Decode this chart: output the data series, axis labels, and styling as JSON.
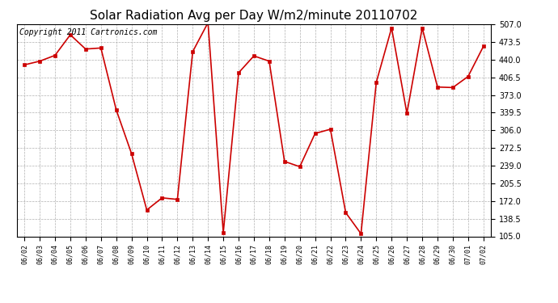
{
  "title": "Solar Radiation Avg per Day W/m2/minute 20110702",
  "copyright": "Copyright 2011 Cartronics.com",
  "dates": [
    "06/02",
    "06/03",
    "06/04",
    "06/05",
    "06/06",
    "06/07",
    "06/08",
    "06/09",
    "06/10",
    "06/11",
    "06/12",
    "06/13",
    "06/14",
    "06/15",
    "06/16",
    "06/17",
    "06/18",
    "06/19",
    "06/20",
    "06/21",
    "06/22",
    "06/23",
    "06/24",
    "06/25",
    "06/26",
    "06/27",
    "06/28",
    "06/29",
    "06/30",
    "07/01",
    "07/02"
  ],
  "values": [
    430,
    437,
    448,
    487,
    460,
    462,
    345,
    262,
    155,
    178,
    175,
    455,
    510,
    112,
    415,
    447,
    437,
    247,
    237,
    300,
    308,
    150,
    110,
    397,
    500,
    338,
    500,
    388,
    387,
    408,
    465
  ],
  "line_color": "#cc0000",
  "marker_color": "#cc0000",
  "bg_color": "#ffffff",
  "grid_color": "#b0b0b0",
  "ylim": [
    105.0,
    507.0
  ],
  "yticks": [
    105.0,
    138.5,
    172.0,
    205.5,
    239.0,
    272.5,
    306.0,
    339.5,
    373.0,
    406.5,
    440.0,
    473.5,
    507.0
  ],
  "title_fontsize": 11,
  "copyright_fontsize": 7,
  "tick_fontsize": 7,
  "xtick_fontsize": 6
}
